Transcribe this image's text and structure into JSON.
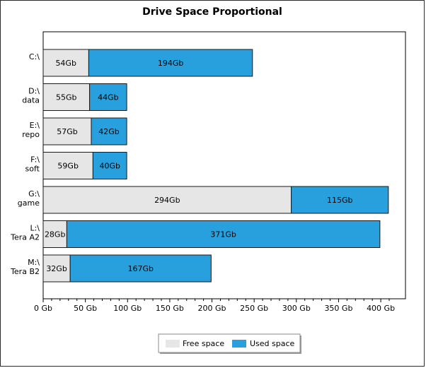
{
  "colors": {
    "free": "#e6e6e6",
    "used": "#27a0dd",
    "border": "#1a1a1a"
  },
  "chart_data": {
    "type": "bar",
    "orientation": "horizontal",
    "stacked": true,
    "title": "Drive Space Proportional",
    "categories": [
      [
        "C:\\"
      ],
      [
        "D:\\",
        "data"
      ],
      [
        "E:\\",
        "repo"
      ],
      [
        "F:\\",
        "soft"
      ],
      [
        "G:\\",
        "game"
      ],
      [
        "L:\\",
        "Tera A2"
      ],
      [
        "M:\\",
        "Tera B2"
      ]
    ],
    "series": [
      {
        "name": "Free space",
        "values": [
          54,
          55,
          57,
          59,
          294,
          28,
          32
        ]
      },
      {
        "name": "Used space",
        "values": [
          194,
          44,
          42,
          40,
          115,
          371,
          167
        ]
      }
    ],
    "value_suffix": "Gb",
    "xlim": [
      0,
      420
    ],
    "xticks": [
      0,
      50,
      100,
      150,
      200,
      250,
      300,
      350,
      400
    ],
    "xtick_labels": [
      "0 Gb",
      "50 Gb",
      "100 Gb",
      "150 Gb",
      "200 Gb",
      "250 Gb",
      "300 Gb",
      "350 Gb",
      "400 Gb"
    ],
    "grid": false,
    "legend": "bottom-center"
  }
}
